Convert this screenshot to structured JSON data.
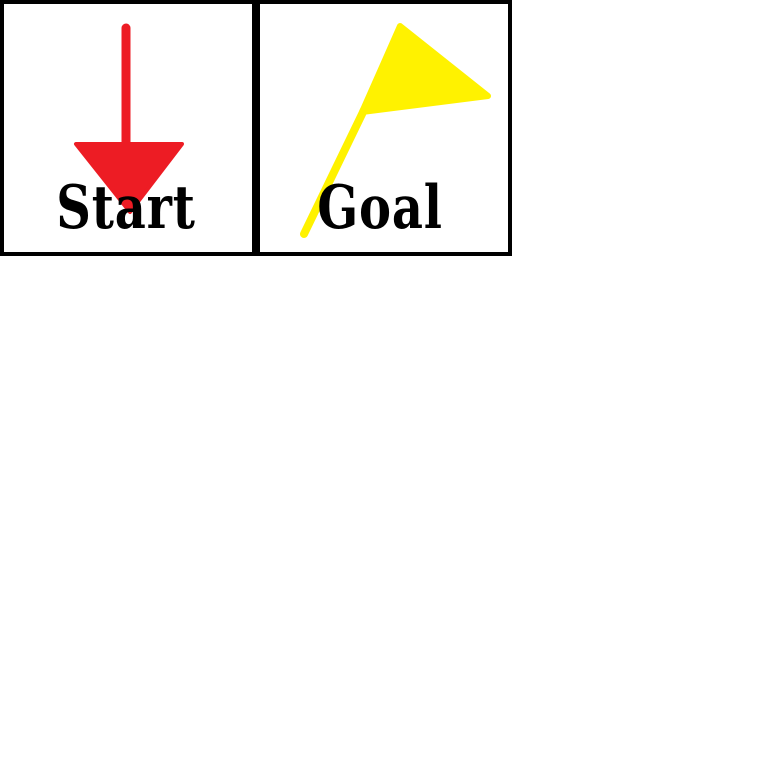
{
  "tiles": {
    "start": {
      "label": "Start",
      "icon": "down-arrow-icon",
      "icon_color": "#ED1C24"
    },
    "goal": {
      "label": "Goal",
      "icon": "flag-icon",
      "icon_color": "#FFF200"
    }
  },
  "colors": {
    "border": "#000000",
    "background": "#FFFFFF"
  }
}
